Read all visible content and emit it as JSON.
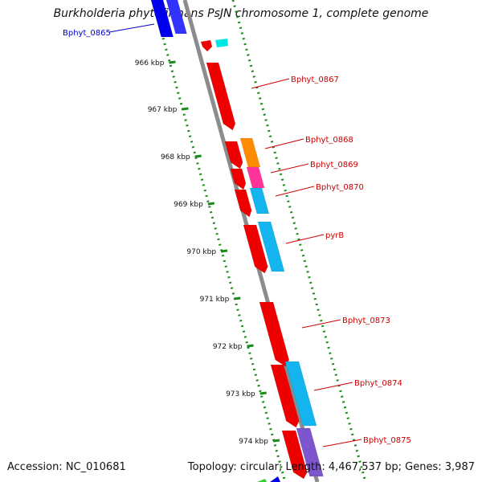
{
  "title": "Burkholderia phytofirmans PsJN chromosome 1, complete genome",
  "footer": {
    "accession": "Accession: NC_010681",
    "summary": "Topology: circular; Length: 4,467,537 bp; Genes: 3,987"
  },
  "colors": {
    "backbone": "#8c8c8c",
    "tick": "#1a8a1a",
    "forward_label": "#cc0000",
    "reverse_label": "#0000cc"
  },
  "ticks": [
    "966 kbp",
    "967 kbp",
    "968 kbp",
    "969 kbp",
    "970 kbp",
    "971 kbp",
    "972 kbp",
    "973 kbp",
    "974 kbp"
  ],
  "genes": [
    {
      "name": "Bphyt_0865",
      "color": "#0000ee",
      "strand": "reverse"
    },
    {
      "name": "Bphyt_0867",
      "color": "#ee0000",
      "strand": "forward"
    },
    {
      "name": "Bphyt_0868",
      "color": "#ee0000",
      "strand": "forward"
    },
    {
      "name": "Bphyt_0869",
      "color": "#ee0000",
      "strand": "forward"
    },
    {
      "name": "Bphyt_0870",
      "color": "#ee0000",
      "strand": "forward"
    },
    {
      "name": "pyrB",
      "color": "#ee0000",
      "strand": "forward"
    },
    {
      "name": "Bphyt_0873",
      "color": "#ee0000",
      "strand": "forward"
    },
    {
      "name": "Bphyt_0874",
      "color": "#ee0000",
      "strand": "forward"
    },
    {
      "name": "Bphyt_0875",
      "color": "#ee0000",
      "strand": "forward"
    }
  ],
  "cog_colors": [
    "#00e5e5",
    "#ff8c00",
    "#ff3399",
    "#14b4ee",
    "#7d55cc",
    "#3333ff"
  ]
}
